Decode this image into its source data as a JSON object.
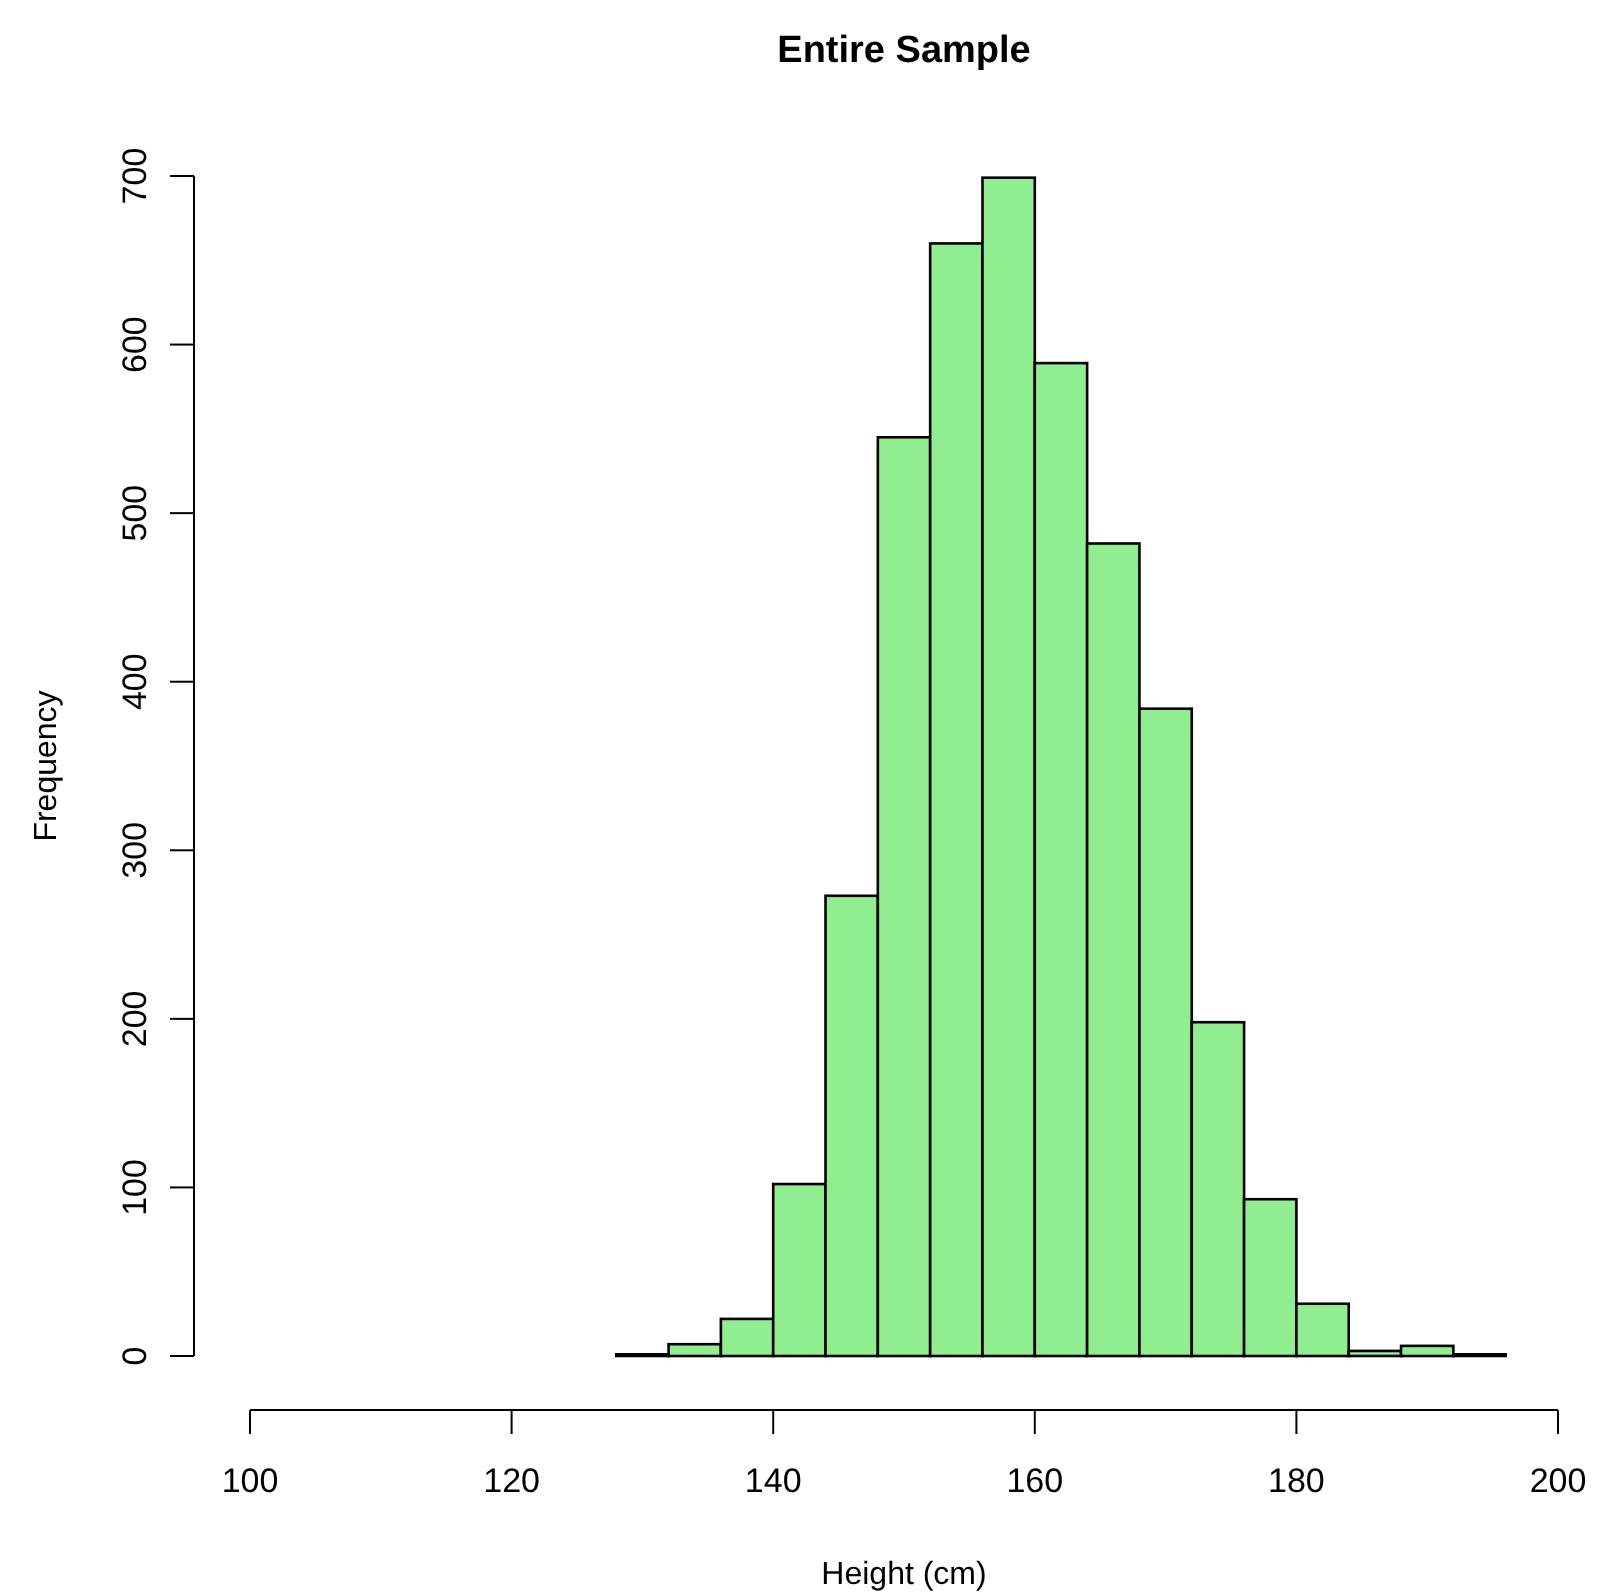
{
  "chart_data": {
    "type": "histogram",
    "title": "Entire Sample",
    "xlabel": "Height (cm)",
    "ylabel": "Frequency",
    "color": "#90ee90",
    "bins": [
      100,
      104,
      108,
      112,
      116,
      120,
      124,
      128,
      132,
      136,
      140,
      144,
      148,
      152,
      156,
      160,
      164,
      168,
      172,
      176,
      180,
      184,
      188,
      192,
      196,
      200
    ],
    "values": [
      0,
      0,
      0,
      0,
      0,
      0,
      0,
      1,
      7,
      22,
      102,
      273,
      545,
      660,
      699,
      589,
      482,
      384,
      198,
      93,
      31,
      3,
      6,
      1,
      0
    ],
    "xlim": [
      100,
      200
    ],
    "xticks": [
      100,
      120,
      140,
      160,
      180,
      200
    ],
    "ylim": [
      0,
      700
    ],
    "yticks": [
      0,
      100,
      200,
      300,
      400,
      500,
      600,
      700
    ],
    "grid": false
  }
}
